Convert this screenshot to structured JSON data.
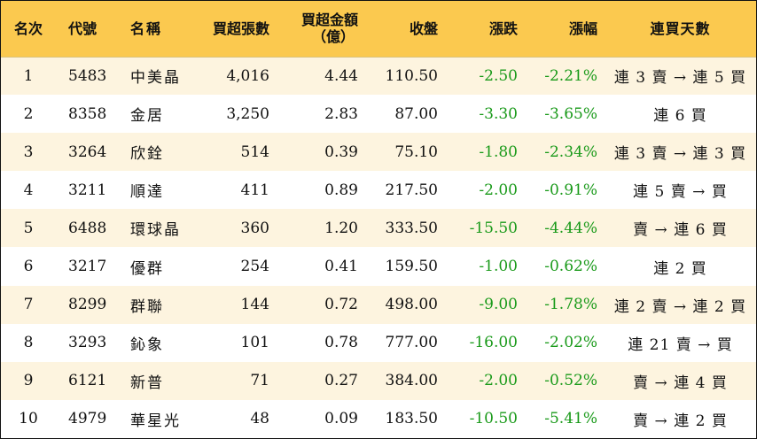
{
  "header": {
    "rank": "名次",
    "code": "代號",
    "name": "名稱",
    "buy_shares": "買超張數",
    "buy_amount_line1": "買超金額",
    "buy_amount_line2": "（億）",
    "close": "收盤",
    "change": "漲跌",
    "change_pct": "漲幅",
    "consecutive_days": "連買天數"
  },
  "rows": [
    {
      "rank": "1",
      "code": "5483",
      "name": "中美晶",
      "buy_shares": "4,016",
      "buy_amount": "4.44",
      "close": "110.50",
      "change": "-2.50",
      "change_pct": "-2.21%",
      "days": "連 3 賣 → 連 5 買"
    },
    {
      "rank": "2",
      "code": "8358",
      "name": "金居",
      "buy_shares": "3,250",
      "buy_amount": "2.83",
      "close": "87.00",
      "change": "-3.30",
      "change_pct": "-3.65%",
      "days": "連 6 買"
    },
    {
      "rank": "3",
      "code": "3264",
      "name": "欣銓",
      "buy_shares": "514",
      "buy_amount": "0.39",
      "close": "75.10",
      "change": "-1.80",
      "change_pct": "-2.34%",
      "days": "連 3 賣 → 連 3 買"
    },
    {
      "rank": "4",
      "code": "3211",
      "name": "順達",
      "buy_shares": "411",
      "buy_amount": "0.89",
      "close": "217.50",
      "change": "-2.00",
      "change_pct": "-0.91%",
      "days": "連 5 賣 → 買"
    },
    {
      "rank": "5",
      "code": "6488",
      "name": "環球晶",
      "buy_shares": "360",
      "buy_amount": "1.20",
      "close": "333.50",
      "change": "-15.50",
      "change_pct": "-4.44%",
      "days": "賣 → 連 6 買"
    },
    {
      "rank": "6",
      "code": "3217",
      "name": "優群",
      "buy_shares": "254",
      "buy_amount": "0.41",
      "close": "159.50",
      "change": "-1.00",
      "change_pct": "-0.62%",
      "days": "連 2 買"
    },
    {
      "rank": "7",
      "code": "8299",
      "name": "群聯",
      "buy_shares": "144",
      "buy_amount": "0.72",
      "close": "498.00",
      "change": "-9.00",
      "change_pct": "-1.78%",
      "days": "連 2 賣 → 連 2 買"
    },
    {
      "rank": "8",
      "code": "3293",
      "name": "鈊象",
      "buy_shares": "101",
      "buy_amount": "0.78",
      "close": "777.00",
      "change": "-16.00",
      "change_pct": "-2.02%",
      "days": "連 21 賣 → 買"
    },
    {
      "rank": "9",
      "code": "6121",
      "name": "新普",
      "buy_shares": "71",
      "buy_amount": "0.27",
      "close": "384.00",
      "change": "-2.00",
      "change_pct": "-0.52%",
      "days": "賣 → 連 4 買"
    },
    {
      "rank": "10",
      "code": "4979",
      "name": "華星光",
      "buy_shares": "48",
      "buy_amount": "0.09",
      "close": "183.50",
      "change": "-10.50",
      "change_pct": "-5.41%",
      "days": "賣 → 連 2 買"
    }
  ],
  "colors": {
    "header_bg": "#fbc94f",
    "odd_row_bg": "#fdf4df",
    "negative_text": "#1a9a1a"
  }
}
